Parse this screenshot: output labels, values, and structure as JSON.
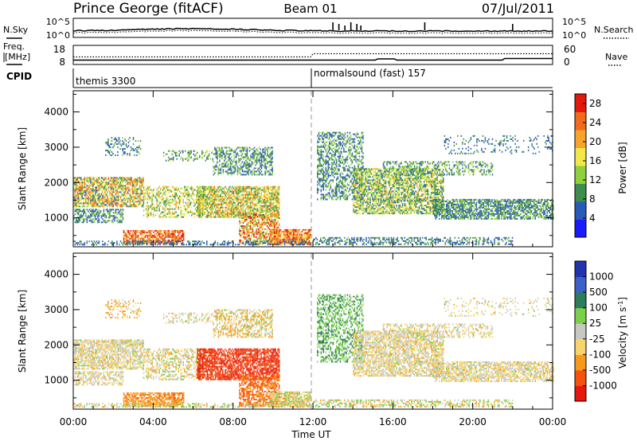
{
  "header": {
    "station": "Prince George (fitACF)",
    "beam": "Beam 01",
    "date": "07/Jul/2011"
  },
  "top_strip": {
    "left_label": "N.Sky",
    "left_ticks": [
      "10^5",
      "10^0"
    ],
    "right_ticks": [
      "10^5",
      "10^0"
    ],
    "right_label": "N.Search"
  },
  "freq_strip": {
    "left_label_1": "Freq.",
    "left_label_2": "[MHz]",
    "left_ticks": [
      "18",
      "8"
    ],
    "right_ticks": [
      "60",
      "0"
    ],
    "right_label": "Nave"
  },
  "cpid": {
    "label": "CPID",
    "first_mode": "themis 3300",
    "second_mode": "normalsound (fast) 157"
  },
  "colors": {
    "power": [
      "#1a1aff",
      "#2a5ab8",
      "#3f8d4e",
      "#8fd13b",
      "#f1e84a",
      "#f7a42b",
      "#f26a1c",
      "#e3190e"
    ],
    "velocity": [
      "#e8170e",
      "#f5520e",
      "#f79a1b",
      "#f7d56a",
      "#c8c8c3",
      "#7bd04a",
      "#2e7d5a",
      "#3b61c8",
      "#2233b0"
    ]
  },
  "chart_data": [
    {
      "type": "heatmap",
      "name": "Power",
      "ylabel": "Slant Range [km]",
      "yticks": [
        "1000",
        "2000",
        "3000",
        "4000"
      ],
      "ylim": [
        180,
        4600
      ],
      "xlim": [
        "00:00",
        "24:00"
      ],
      "colorbar": {
        "label": "Power [dB]",
        "ticks": [
          "4",
          "8",
          "12",
          "16",
          "20",
          "24",
          "28"
        ],
        "range": [
          0,
          30
        ]
      },
      "mode_change_time": "12:00"
    },
    {
      "type": "heatmap",
      "name": "Velocity",
      "ylabel": "Slant Range [km]",
      "yticks": [
        "1000",
        "2000",
        "3000",
        "4000"
      ],
      "ylim": [
        180,
        4600
      ],
      "xlim": [
        "00:00",
        "24:00"
      ],
      "xticks": [
        "00:00",
        "04:00",
        "08:00",
        "12:00",
        "16:00",
        "20:00",
        "00:00"
      ],
      "xlabel": "Time UT",
      "colorbar": {
        "label": "Velocity [m s^-1]",
        "ticks": [
          "1000",
          "500",
          "100",
          "25",
          "-25",
          "-100",
          "-500",
          "-1000"
        ]
      },
      "mode_change_time": "12:00"
    }
  ]
}
